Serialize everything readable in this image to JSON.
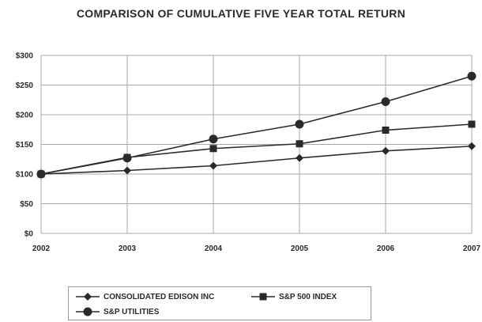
{
  "chart_data": {
    "type": "line",
    "title": "COMPARISON OF CUMULATIVE FIVE YEAR TOTAL RETURN",
    "xlabel": "",
    "ylabel": "",
    "categories": [
      "2002",
      "2003",
      "2004",
      "2005",
      "2006",
      "2007"
    ],
    "ylim": [
      0,
      300
    ],
    "yticks": [
      0,
      50,
      100,
      150,
      200,
      250,
      300
    ],
    "ytick_labels": [
      "$0",
      "$50",
      "$100",
      "$150",
      "$200",
      "$250",
      "$300"
    ],
    "grid": true,
    "legend_position": "bottom",
    "series": [
      {
        "name": "CONSOLIDATED EDISON INC",
        "marker": "diamond",
        "color": "#2a2a2a",
        "values": [
          100,
          106,
          114,
          127,
          139,
          147
        ]
      },
      {
        "name": "S&P 500 INDEX",
        "marker": "square",
        "color": "#2a2a2a",
        "values": [
          100,
          128,
          143,
          151,
          174,
          184
        ]
      },
      {
        "name": "S&P UTILITIES",
        "marker": "circle",
        "color": "#2a2a2a",
        "values": [
          100,
          127,
          159,
          184,
          222,
          265
        ]
      }
    ]
  }
}
